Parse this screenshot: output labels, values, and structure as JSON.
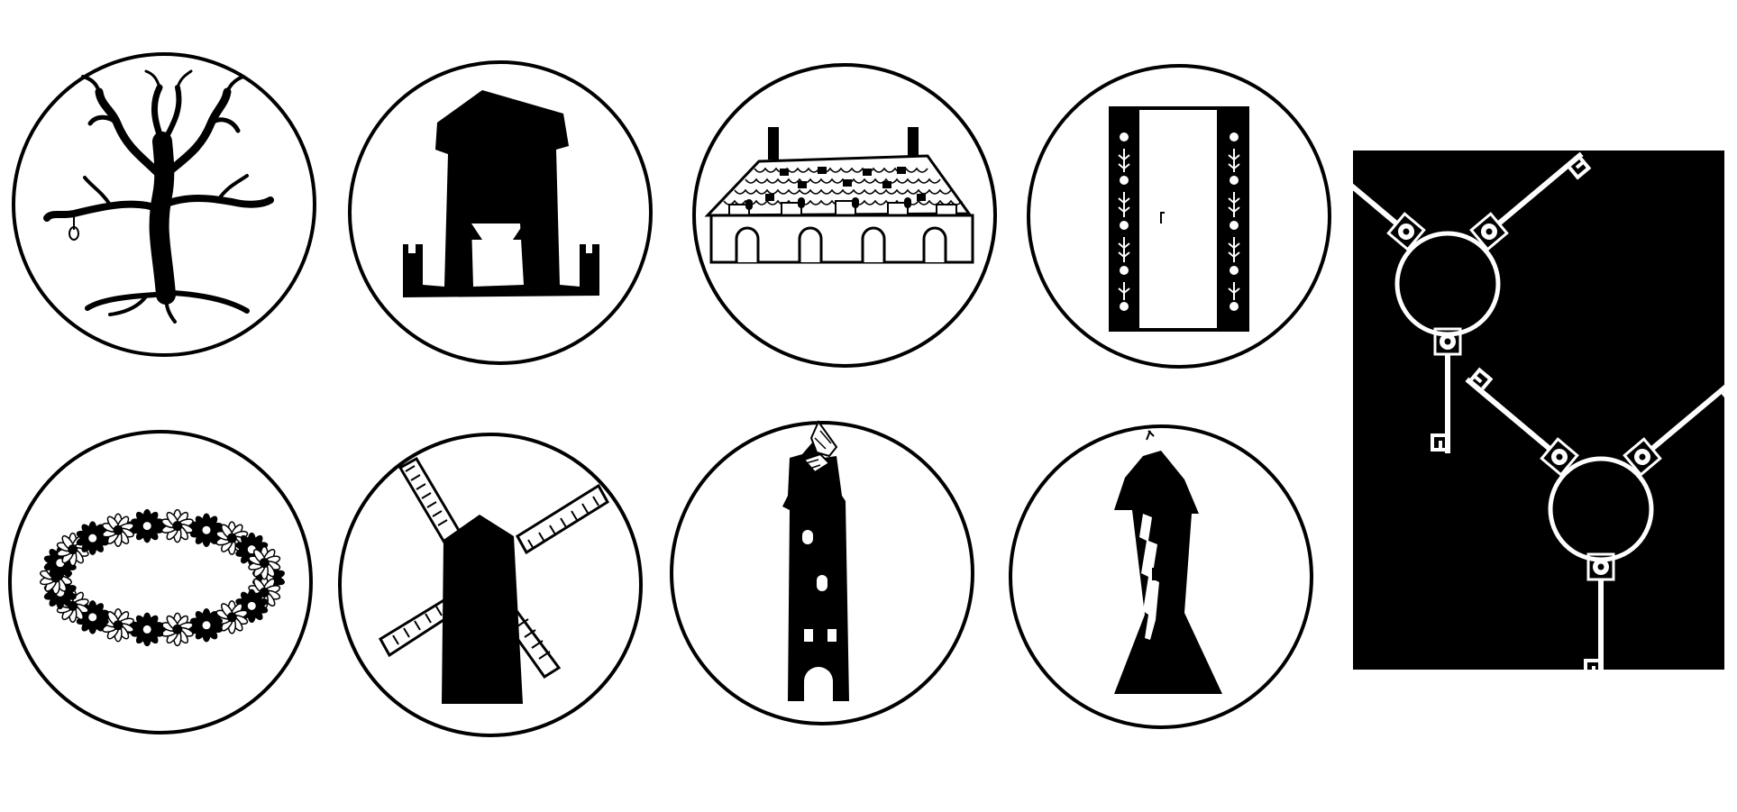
{
  "colors": {
    "background": "#ffffff",
    "ink": "#000000",
    "panel_background": "#000000",
    "panel_ink": "#ffffff"
  },
  "medallions": [
    {
      "icon": "gallows-tree-icon"
    },
    {
      "icon": "gatehouse-tower-icon"
    },
    {
      "icon": "tiled-roof-hall-icon"
    },
    {
      "icon": "ornate-door-icon"
    },
    {
      "icon": "flower-wreath-icon"
    },
    {
      "icon": "windmill-icon"
    },
    {
      "icon": "ruined-tower-icon"
    },
    {
      "icon": "leaning-tower-icon"
    }
  ],
  "keys_panel": {
    "icon": "crossed-keys-on-rings-icon"
  }
}
